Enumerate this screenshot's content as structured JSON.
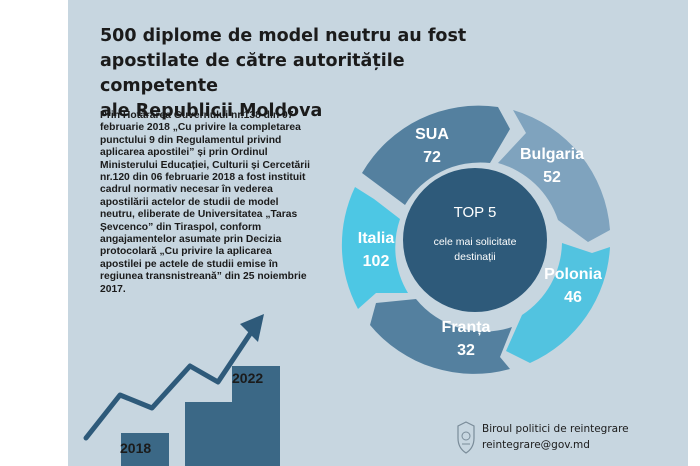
{
  "title_lines": [
    "500 diplome de model neutru au fost",
    "apostilate de către autoritățile competente",
    "ale Republicii Moldova"
  ],
  "body_text": "Prin Hotărârea Guvernului nr.138 din 07 februarie 2018 „Cu privire la completarea punctului 9 din Regulamentul privind aplicarea apostilei” și prin Ordinul Ministerului Educației, Culturii și Cercetării nr.120 din 06 februarie 2018 a fost instituit cadrul normativ necesar în vederea apostilării actelor de studii de model neutru, eliberate de Universitatea „Taras Șevcenco” din Tiraspol, conform angajamentelor asumate prin Decizia protocolară „Cu privire la aplicarea apostilei pe actele de studii emise în regiunea transnistreană” din 25 noiembrie 2017.",
  "center": {
    "title": "TOP 5",
    "subtitle_line1": "cele mai solicitate",
    "subtitle_line2": "destinații"
  },
  "destinations": [
    {
      "name": "SUA",
      "value": "72"
    },
    {
      "name": "Bulgaria",
      "value": "52"
    },
    {
      "name": "Polonia",
      "value": "46"
    },
    {
      "name": "Franța",
      "value": "32"
    },
    {
      "name": "Italia",
      "value": "102"
    }
  ],
  "growth_chart": {
    "start_label": "2018",
    "end_label": "2022"
  },
  "footer": {
    "org": "Biroul politici de reintegrare",
    "email": "reintegrare@gov.md"
  },
  "colors": {
    "background": "#c7d6e0",
    "segment_dark": "#54809f",
    "segment_light": "#7fa3be",
    "segment_cyan": "#4dc7e4",
    "segment_cyan_light": "#52c3e0",
    "center": "#2e5a7a",
    "bars": "#3b6886"
  }
}
